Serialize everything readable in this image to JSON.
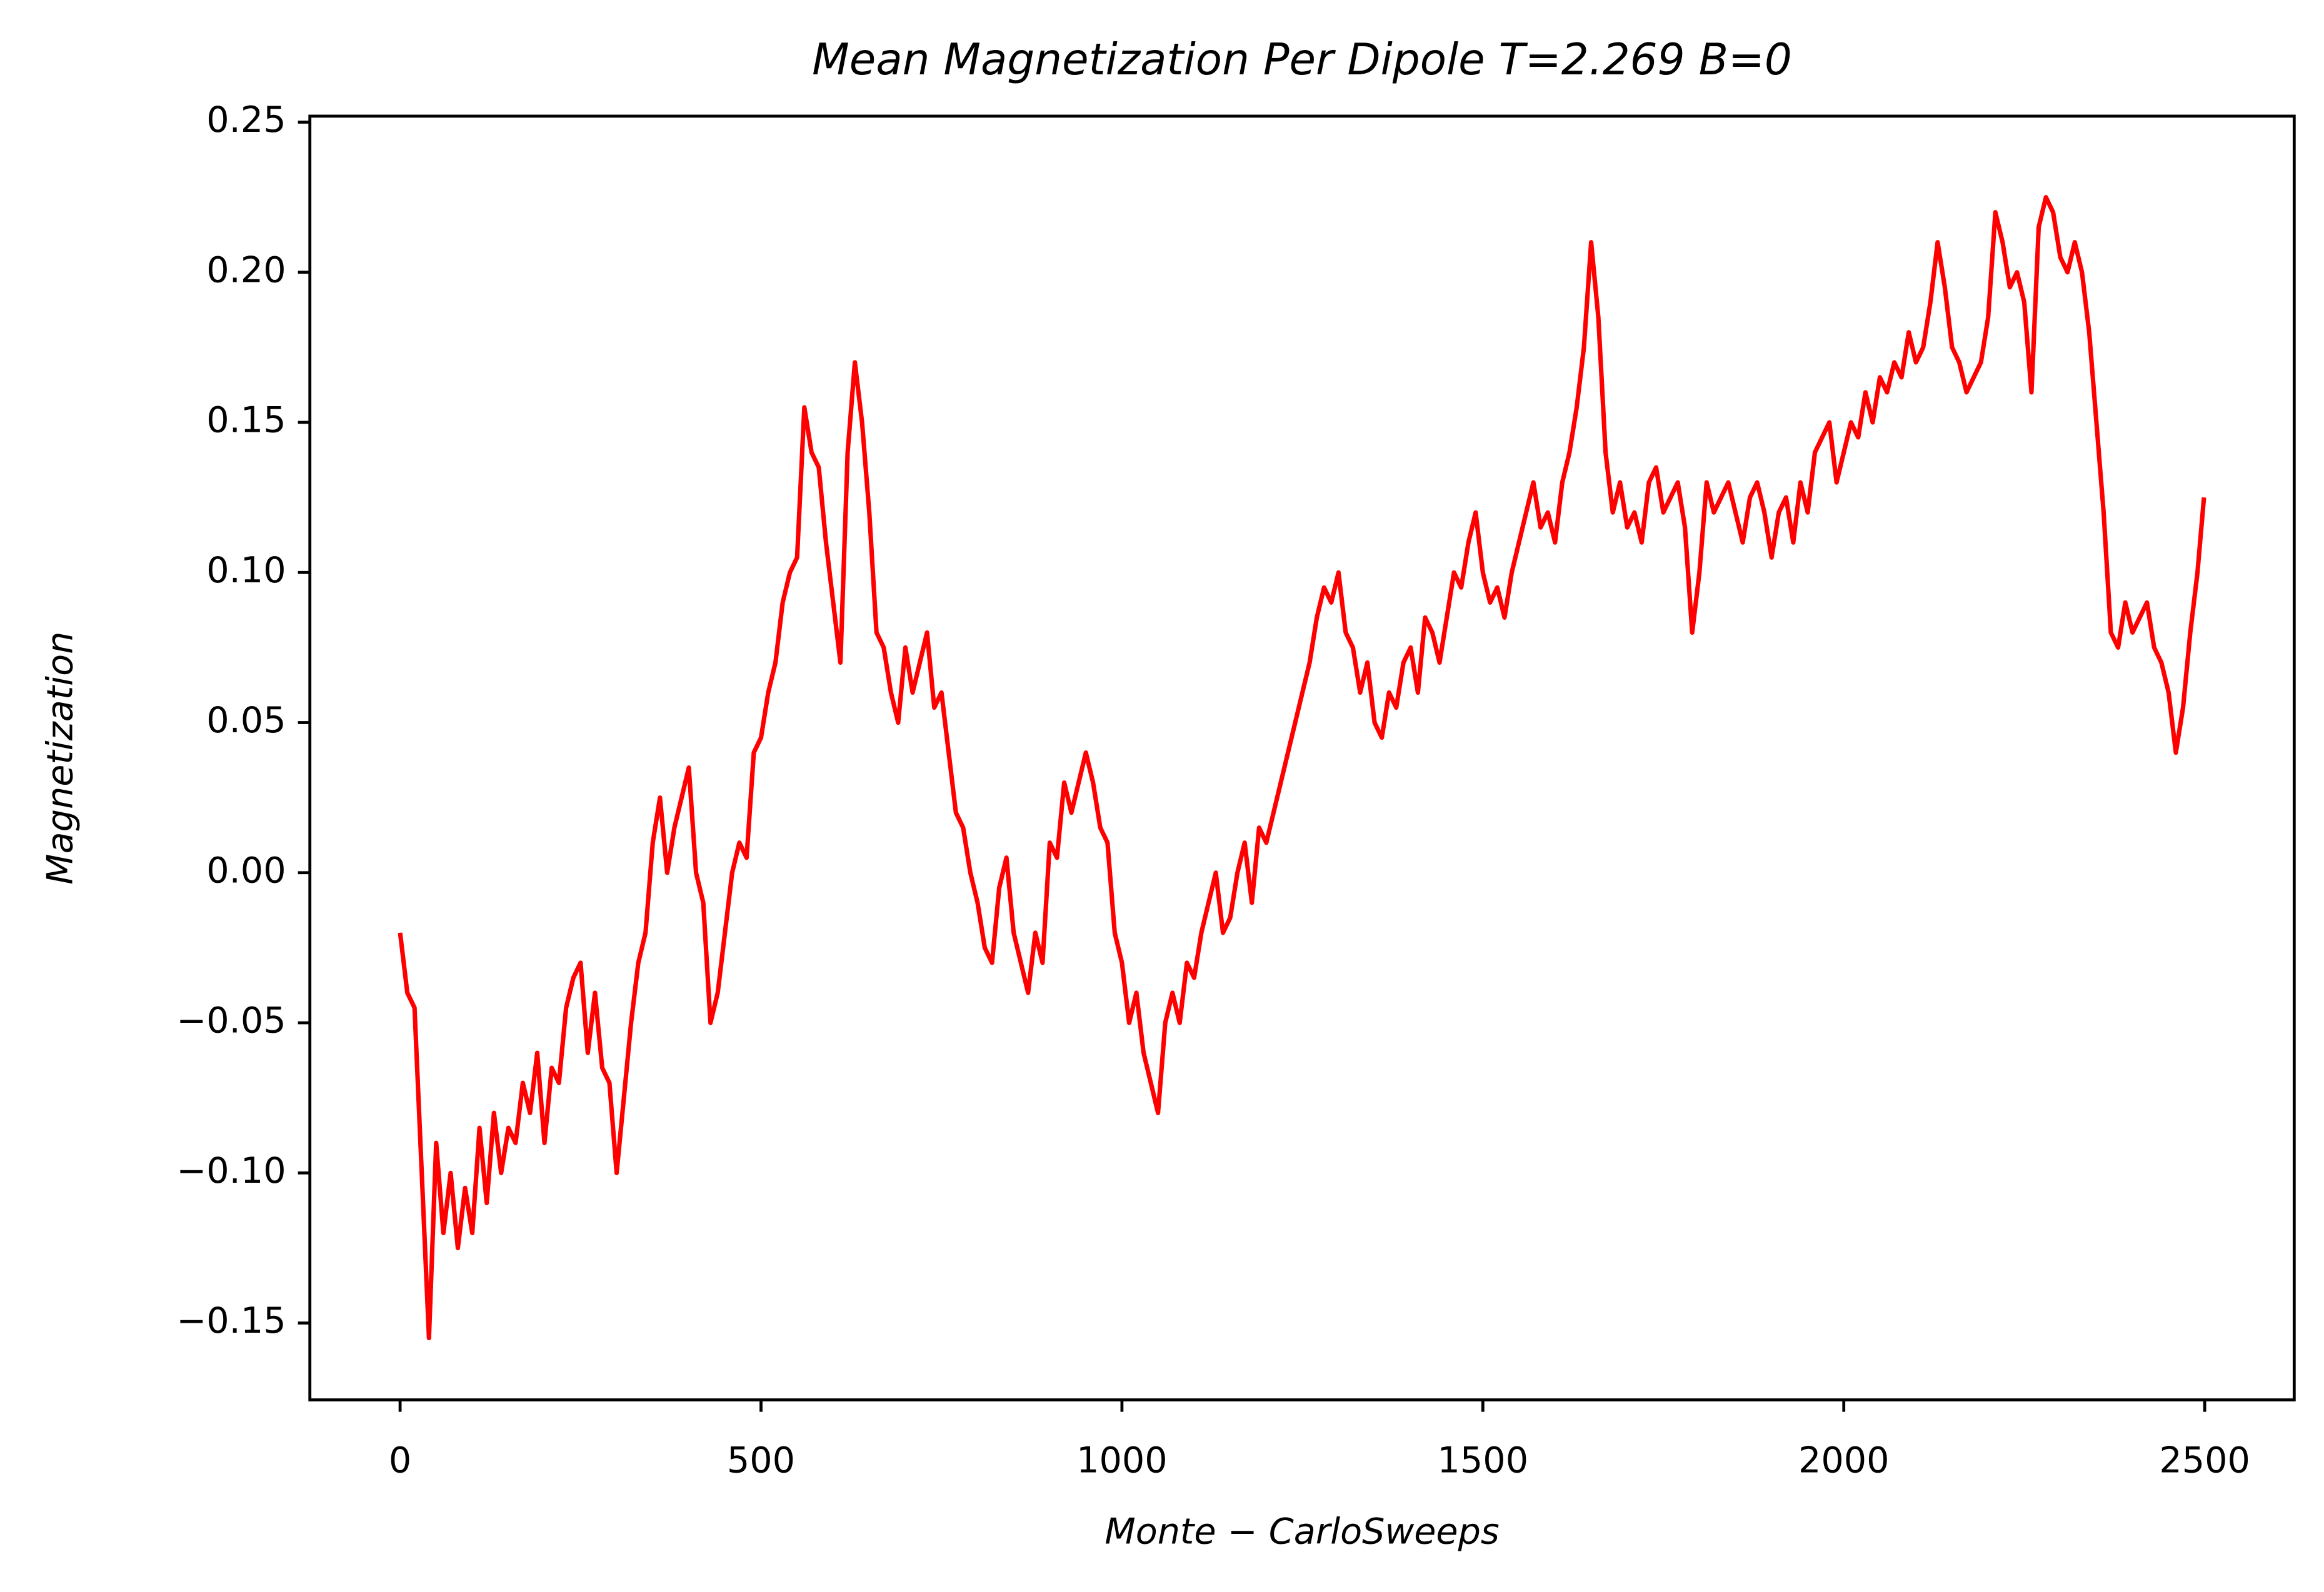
{
  "chart_data": {
    "type": "line",
    "title": "Mean Magnetization Per Dipole T=2.269 B=0",
    "x_label": "Monte − CarloSweeps",
    "y_label": "Magnetization",
    "x": [
      0,
      10,
      20,
      30,
      40,
      50,
      60,
      70,
      80,
      90,
      100,
      110,
      120,
      130,
      140,
      150,
      160,
      170,
      180,
      190,
      200,
      210,
      220,
      230,
      240,
      250,
      260,
      270,
      280,
      290,
      300,
      310,
      320,
      330,
      340,
      350,
      360,
      370,
      380,
      390,
      400,
      410,
      420,
      430,
      440,
      450,
      460,
      470,
      480,
      490,
      500,
      510,
      520,
      530,
      540,
      550,
      560,
      570,
      580,
      590,
      600,
      610,
      620,
      630,
      640,
      650,
      660,
      670,
      680,
      690,
      700,
      710,
      720,
      730,
      740,
      750,
      760,
      770,
      780,
      790,
      800,
      810,
      820,
      830,
      840,
      850,
      860,
      870,
      880,
      890,
      900,
      910,
      920,
      930,
      940,
      950,
      960,
      970,
      980,
      990,
      1000,
      1010,
      1020,
      1030,
      1040,
      1050,
      1060,
      1070,
      1080,
      1090,
      1100,
      1110,
      1120,
      1130,
      1140,
      1150,
      1160,
      1170,
      1180,
      1190,
      1200,
      1210,
      1220,
      1230,
      1240,
      1250,
      1260,
      1270,
      1280,
      1290,
      1300,
      1310,
      1320,
      1330,
      1340,
      1350,
      1360,
      1370,
      1380,
      1390,
      1400,
      1410,
      1420,
      1430,
      1440,
      1450,
      1460,
      1470,
      1480,
      1490,
      1500,
      1510,
      1520,
      1530,
      1540,
      1550,
      1560,
      1570,
      1580,
      1590,
      1600,
      1610,
      1620,
      1630,
      1640,
      1650,
      1660,
      1670,
      1680,
      1690,
      1700,
      1710,
      1720,
      1730,
      1740,
      1750,
      1760,
      1770,
      1780,
      1790,
      1800,
      1810,
      1820,
      1830,
      1840,
      1850,
      1860,
      1870,
      1880,
      1890,
      1900,
      1910,
      1920,
      1930,
      1940,
      1950,
      1960,
      1970,
      1980,
      1990,
      2000,
      2010,
      2020,
      2030,
      2040,
      2050,
      2060,
      2070,
      2080,
      2090,
      2100,
      2110,
      2120,
      2130,
      2140,
      2150,
      2160,
      2170,
      2180,
      2190,
      2200,
      2210,
      2220,
      2230,
      2240,
      2250,
      2260,
      2270,
      2280,
      2290,
      2300,
      2310,
      2320,
      2330,
      2340,
      2350,
      2360,
      2370,
      2380,
      2390,
      2400,
      2410,
      2420,
      2430,
      2440,
      2450,
      2460,
      2470,
      2480,
      2490,
      2499
    ],
    "series": [
      {
        "color": "#ff0000",
        "values": [
          -0.02,
          -0.04,
          -0.045,
          -0.1,
          -0.155,
          -0.09,
          -0.12,
          -0.1,
          -0.125,
          -0.105,
          -0.12,
          -0.085,
          -0.11,
          -0.08,
          -0.1,
          -0.085,
          -0.09,
          -0.07,
          -0.08,
          -0.06,
          -0.09,
          -0.065,
          -0.07,
          -0.045,
          -0.035,
          -0.03,
          -0.06,
          -0.04,
          -0.065,
          -0.07,
          -0.1,
          -0.075,
          -0.05,
          -0.03,
          -0.02,
          0.01,
          0.025,
          0.0,
          0.015,
          0.025,
          0.035,
          0.0,
          -0.01,
          -0.05,
          -0.04,
          -0.02,
          0.0,
          0.01,
          0.005,
          0.04,
          0.045,
          0.06,
          0.07,
          0.09,
          0.1,
          0.105,
          0.155,
          0.14,
          0.135,
          0.11,
          0.09,
          0.07,
          0.14,
          0.17,
          0.15,
          0.12,
          0.08,
          0.075,
          0.06,
          0.05,
          0.075,
          0.06,
          0.07,
          0.08,
          0.055,
          0.06,
          0.04,
          0.02,
          0.015,
          0.0,
          -0.01,
          -0.025,
          -0.03,
          -0.005,
          0.005,
          -0.02,
          -0.03,
          -0.04,
          -0.02,
          -0.03,
          0.01,
          0.005,
          0.03,
          0.02,
          0.03,
          0.04,
          0.03,
          0.015,
          0.01,
          -0.02,
          -0.03,
          -0.05,
          -0.04,
          -0.06,
          -0.07,
          -0.08,
          -0.05,
          -0.04,
          -0.05,
          -0.03,
          -0.035,
          -0.02,
          -0.01,
          0.0,
          -0.02,
          -0.015,
          0.0,
          0.01,
          -0.01,
          0.015,
          0.01,
          0.02,
          0.03,
          0.04,
          0.05,
          0.06,
          0.07,
          0.085,
          0.095,
          0.09,
          0.1,
          0.08,
          0.075,
          0.06,
          0.07,
          0.05,
          0.045,
          0.06,
          0.055,
          0.07,
          0.075,
          0.06,
          0.085,
          0.08,
          0.07,
          0.085,
          0.1,
          0.095,
          0.11,
          0.12,
          0.1,
          0.09,
          0.095,
          0.085,
          0.1,
          0.11,
          0.12,
          0.13,
          0.115,
          0.12,
          0.11,
          0.13,
          0.14,
          0.155,
          0.175,
          0.21,
          0.185,
          0.14,
          0.12,
          0.13,
          0.115,
          0.12,
          0.11,
          0.13,
          0.135,
          0.12,
          0.125,
          0.13,
          0.115,
          0.08,
          0.1,
          0.13,
          0.12,
          0.125,
          0.13,
          0.12,
          0.11,
          0.125,
          0.13,
          0.12,
          0.105,
          0.12,
          0.125,
          0.11,
          0.13,
          0.12,
          0.14,
          0.145,
          0.15,
          0.13,
          0.14,
          0.15,
          0.145,
          0.16,
          0.15,
          0.165,
          0.16,
          0.17,
          0.165,
          0.18,
          0.17,
          0.175,
          0.19,
          0.21,
          0.195,
          0.175,
          0.17,
          0.16,
          0.165,
          0.17,
          0.185,
          0.22,
          0.21,
          0.195,
          0.2,
          0.19,
          0.16,
          0.215,
          0.225,
          0.22,
          0.205,
          0.2,
          0.21,
          0.2,
          0.18,
          0.15,
          0.12,
          0.08,
          0.075,
          0.09,
          0.08,
          0.085,
          0.09,
          0.075,
          0.07,
          0.06,
          0.04,
          0.055,
          0.08,
          0.1,
          0.125
        ]
      }
    ],
    "xlim": [
      -125,
      2624
    ],
    "ylim": [
      -0.1756,
      0.252
    ],
    "xticks": [
      0,
      500,
      1000,
      1500,
      2000,
      2500
    ],
    "yticks": [
      {
        "value": -0.15,
        "label": "−0.15"
      },
      {
        "value": -0.1,
        "label": "−0.10"
      },
      {
        "value": -0.05,
        "label": "−0.05"
      },
      {
        "value": 0,
        "label": "0.00"
      },
      {
        "value": 0.05,
        "label": "0.05"
      },
      {
        "value": 0.1,
        "label": "0.10"
      },
      {
        "value": 0.15,
        "label": "0.15"
      },
      {
        "value": 0.2,
        "label": "0.20"
      },
      {
        "value": 0.25,
        "label": "0.25"
      }
    ],
    "grid": false
  }
}
